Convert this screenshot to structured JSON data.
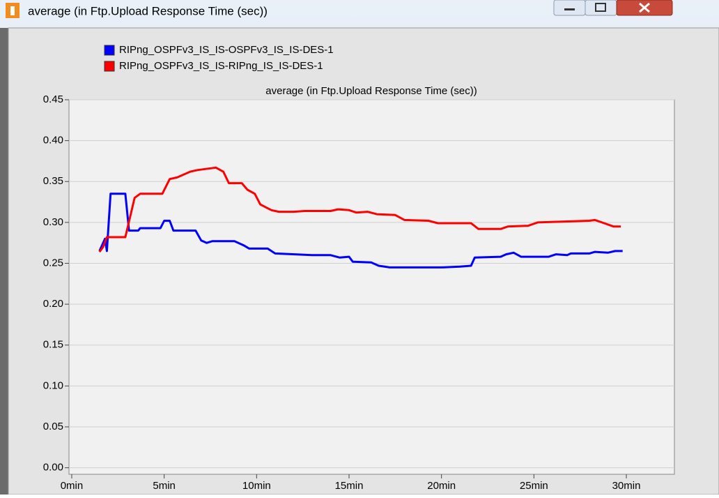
{
  "window_title": "average (in Ftp.Upload Response Time (sec))",
  "chart_data": {
    "type": "line",
    "title": "average (in Ftp.Upload Response Time (sec))",
    "series": [
      {
        "name": "RIPng_OSPFv3_IS_IS-OSPFv3_IS_IS-DES-1",
        "color": "#0000ff",
        "x": [
          1.5,
          1.8,
          1.9,
          2.1,
          2.9,
          3.1,
          3.6,
          3.7,
          4.8,
          5.0,
          5.3,
          5.5,
          6.7,
          7.0,
          7.3,
          7.6,
          8.8,
          9.3,
          9.6,
          10.6,
          11.0,
          13.0,
          14.0,
          14.5,
          15.0,
          15.2,
          16.2,
          16.6,
          17.2,
          20.0,
          21.0,
          21.6,
          21.8,
          23.2,
          23.5,
          23.9,
          24.3,
          25.8,
          26.2,
          26.8,
          27.0,
          28.0,
          28.3,
          29.0,
          29.4,
          29.8
        ],
        "values": [
          0.265,
          0.28,
          0.265,
          0.335,
          0.335,
          0.29,
          0.29,
          0.293,
          0.293,
          0.302,
          0.302,
          0.29,
          0.29,
          0.278,
          0.275,
          0.277,
          0.277,
          0.272,
          0.268,
          0.268,
          0.262,
          0.26,
          0.26,
          0.257,
          0.258,
          0.252,
          0.251,
          0.247,
          0.245,
          0.245,
          0.246,
          0.247,
          0.257,
          0.258,
          0.261,
          0.263,
          0.258,
          0.258,
          0.261,
          0.26,
          0.262,
          0.262,
          0.264,
          0.263,
          0.265,
          0.265
        ]
      },
      {
        "name": "RIPng_OSPFv3_IS_IS-RIPng_IS_IS-DES-1",
        "color": "#ff0000",
        "x": [
          1.5,
          1.7,
          1.9,
          2.9,
          3.4,
          3.7,
          4.9,
          5.3,
          5.7,
          6.0,
          6.4,
          6.8,
          7.8,
          8.2,
          8.5,
          9.2,
          9.5,
          9.9,
          10.2,
          10.8,
          11.2,
          12.0,
          12.6,
          14.0,
          14.4,
          15.0,
          15.4,
          16.0,
          16.5,
          17.5,
          18.0,
          19.3,
          19.8,
          21.6,
          22.0,
          23.2,
          23.6,
          24.7,
          25.2,
          28.0,
          28.3,
          28.8,
          29.3,
          29.7
        ],
        "values": [
          0.264,
          0.27,
          0.282,
          0.282,
          0.33,
          0.335,
          0.335,
          0.353,
          0.355,
          0.358,
          0.362,
          0.364,
          0.367,
          0.362,
          0.348,
          0.348,
          0.34,
          0.335,
          0.322,
          0.315,
          0.313,
          0.313,
          0.314,
          0.314,
          0.316,
          0.315,
          0.312,
          0.313,
          0.31,
          0.309,
          0.303,
          0.302,
          0.299,
          0.299,
          0.292,
          0.292,
          0.295,
          0.296,
          0.3,
          0.302,
          0.303,
          0.299,
          0.295,
          0.295
        ]
      }
    ],
    "xlim": [
      -0.15,
      32.6
    ],
    "xticks": [
      {
        "value": 0,
        "label": "0min"
      },
      {
        "value": 5,
        "label": "5min"
      },
      {
        "value": 10,
        "label": "10min"
      },
      {
        "value": 15,
        "label": "15min"
      },
      {
        "value": 20,
        "label": "20min"
      },
      {
        "value": 25,
        "label": "25min"
      },
      {
        "value": 30,
        "label": "30min"
      }
    ],
    "ylim": [
      -0.008,
      0.45
    ],
    "yticks": [
      {
        "value": 0,
        "label": "0.00"
      },
      {
        "value": 0.05,
        "label": "0.05"
      },
      {
        "value": 0.1,
        "label": "0.10"
      },
      {
        "value": 0.15,
        "label": "0.15"
      },
      {
        "value": 0.2,
        "label": "0.20"
      },
      {
        "value": 0.25,
        "label": "0.25"
      },
      {
        "value": 0.3,
        "label": "0.30"
      },
      {
        "value": 0.35,
        "label": "0.35"
      },
      {
        "value": 0.4,
        "label": "0.40"
      },
      {
        "value": 0.45,
        "label": "0.45"
      }
    ],
    "grid": true
  }
}
